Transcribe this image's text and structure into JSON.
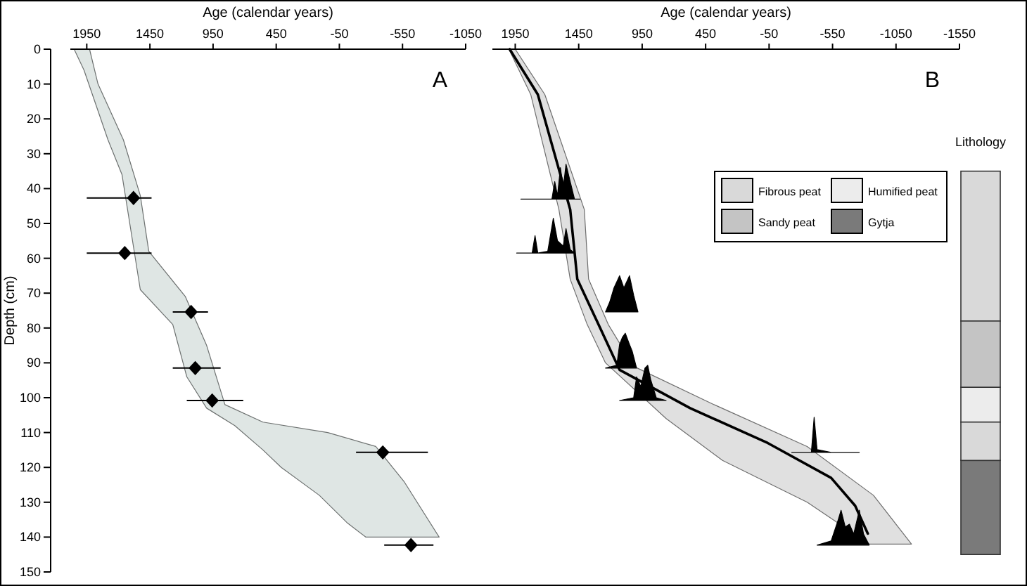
{
  "chart_data": [
    {
      "type": "area",
      "xlabel": "Age (calendar years)",
      "ylabel": "Depth (cm)",
      "annotations": [
        "A"
      ],
      "xlim": [
        2080,
        -1050
      ],
      "xticks": [
        1950,
        1450,
        950,
        450,
        -50,
        -550,
        -1050
      ],
      "ylim": [
        150,
        0
      ],
      "yticks": [
        0,
        10,
        20,
        30,
        40,
        50,
        60,
        70,
        80,
        90,
        100,
        110,
        120,
        130,
        140,
        150
      ],
      "series": [
        {
          "color": "#dfe6e4",
          "x": [
            2050,
            1972,
            1782,
            1671,
            1526,
            1269,
            1158,
            1001,
            778,
            555,
            410,
            109,
            -115,
            -260,
            -840,
            -561,
            -338,
            42,
            555,
            856,
            1001,
            1169,
            1459,
            1526,
            1660,
            1861,
            1928
          ],
          "values": [
            0,
            6,
            26,
            36,
            69,
            79,
            94,
            103,
            108,
            115,
            120,
            128,
            136,
            140,
            140,
            124,
            114,
            110,
            107,
            102,
            85,
            71,
            58,
            42,
            26,
            10,
            0
          ]
        },
        {
          "type": "scatter",
          "marker": "diamond",
          "color": "#000000",
          "x": [
            1580,
            1649,
            1124,
            1091,
            957,
            -394,
            -617
          ],
          "values": [
            42.7,
            58.5,
            75.4,
            91.5,
            100.8,
            115.7,
            142.3
          ],
          "xerrors": [
            [
              1437,
              1950
            ],
            [
              1437,
              1950
            ],
            [
              990,
              1269
            ],
            [
              890,
              1269
            ],
            [
              711,
              1158
            ],
            [
              -751,
              -182
            ],
            [
              -795,
              -405
            ]
          ]
        }
      ]
    },
    {
      "type": "area",
      "xlabel": "Age (calendar years)",
      "annotations": [
        "B"
      ],
      "xlim": [
        2130,
        -1550
      ],
      "xticks": [
        1950,
        1450,
        950,
        450,
        -50,
        -550,
        -1050,
        -1550
      ],
      "ylim": [
        150,
        0
      ],
      "tick_labels": "x",
      "series": [
        {
          "color": "#e0e0e0",
          "x": [
            2000,
            1828,
            1606,
            1517,
            1383,
            1239,
            761,
            317,
            -350,
            -839,
            -1172,
            -872,
            -350,
            383,
            1017,
            1217,
            1372,
            1406,
            1717,
            1950
          ],
          "values": [
            0,
            13,
            46,
            66,
            79,
            90,
            106,
            118,
            130,
            142,
            142,
            128,
            114,
            102,
            91,
            79,
            66,
            46,
            13,
            0
          ]
        },
        {
          "type": "line",
          "color": "#000000",
          "x": [
            1994,
            1772,
            1517,
            1461,
            1294,
            1128,
            572,
            -39,
            -539,
            -728,
            -828
          ],
          "values": [
            0,
            13,
            46,
            66,
            79,
            92,
            103,
            113,
            123,
            131,
            139
          ]
        },
        {
          "color": "#000000",
          "x": [
            1906,
            1661,
            1639,
            1617,
            1594,
            1572,
            1550,
            1517,
            1483,
            1439
          ],
          "values": [
            43,
            43,
            38,
            42,
            34,
            40,
            33,
            38,
            43,
            43
          ]
        },
        {
          "color": "#000000",
          "x": [
            1939,
            1817,
            1794,
            1772,
            1694,
            1650,
            1617,
            1572,
            1550,
            1517,
            1483
          ],
          "values": [
            58.5,
            58.5,
            53.5,
            58.5,
            58,
            48.5,
            55,
            56.5,
            51.5,
            57.5,
            58.5
          ]
        },
        {
          "color": "#000000",
          "x": [
            1239,
            1206,
            1172,
            1128,
            1094,
            1050,
            1017,
            983
          ],
          "values": [
            75.4,
            72.6,
            68.5,
            65,
            68.5,
            65,
            70.6,
            75.4
          ]
        },
        {
          "color": "#000000",
          "x": [
            1239,
            1150,
            1128,
            1106,
            1083,
            1050,
            1028,
            994
          ],
          "values": [
            91.5,
            90.7,
            84.7,
            82.7,
            81.5,
            84.7,
            86.7,
            91.5
          ]
        },
        {
          "color": "#000000",
          "x": [
            1128,
            1017,
            994,
            961,
            928,
            906,
            883,
            839,
            761
          ],
          "values": [
            100.8,
            100,
            94,
            96.8,
            91.5,
            90.7,
            94.8,
            100,
            100.8
          ]
        },
        {
          "color": "#000000",
          "x": [
            -228,
            -383,
            -405,
            -428,
            -539,
            -761
          ],
          "values": [
            115.7,
            115.7,
            105.6,
            114.9,
            115.7,
            115.7
          ]
        },
        {
          "color": "#000000",
          "x": [
            -428,
            -539,
            -594,
            -617,
            -650,
            -683,
            -717,
            -761,
            -794,
            -839
          ],
          "values": [
            142.3,
            141.1,
            135.1,
            132.3,
            137.1,
            136.3,
            139.1,
            132.3,
            139.1,
            142.3
          ]
        }
      ]
    },
    {
      "type": "bar",
      "title": "Lithology",
      "categories": [
        null
      ],
      "ylim": [
        150,
        0
      ],
      "tick_labels": false,
      "legend": "left",
      "series": [
        {
          "name": "Fibrous peat",
          "color": "#d9d9d9",
          "base": [
            35
          ],
          "values": [
            43
          ]
        },
        {
          "name": "Humified peat",
          "color": "#ececec",
          "base": [
            97
          ],
          "values": [
            10
          ]
        },
        {
          "name": "Sandy peat",
          "color": "#c4c4c4",
          "base": [
            78
          ],
          "values": [
            19
          ]
        },
        {
          "name": "Gytja",
          "color": "#7a7a7a",
          "base": [
            118
          ],
          "values": [
            27
          ]
        },
        {
          "color": "#d9d9d9",
          "base": [
            107
          ],
          "values": [
            11
          ]
        }
      ]
    }
  ]
}
